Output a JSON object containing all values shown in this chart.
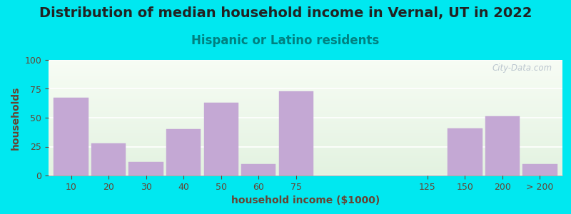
{
  "title": "Distribution of median household income in Vernal, UT in 2022",
  "subtitle": "Hispanic or Latino residents",
  "xlabel": "household income ($1000)",
  "ylabel": "households",
  "bg_outer": "#00e8f0",
  "bar_color": "#c4a8d4",
  "bar_edge_color": "#c4a8d4",
  "categories": [
    "10",
    "20",
    "30",
    "40",
    "50",
    "60",
    "75",
    "125",
    "150",
    "200",
    "> 200"
  ],
  "values": [
    67,
    28,
    12,
    40,
    63,
    10,
    73,
    0,
    41,
    51,
    10
  ],
  "ylim": [
    0,
    100
  ],
  "yticks": [
    0,
    25,
    50,
    75,
    100
  ],
  "title_fontsize": 14,
  "subtitle_fontsize": 12,
  "label_fontsize": 10,
  "tick_fontsize": 9,
  "watermark_text": "City-Data.com",
  "watermark_color": "#b0bcc8",
  "title_color": "#222222",
  "subtitle_color": "#008080",
  "axis_label_color": "#664433",
  "tick_color": "#664433"
}
